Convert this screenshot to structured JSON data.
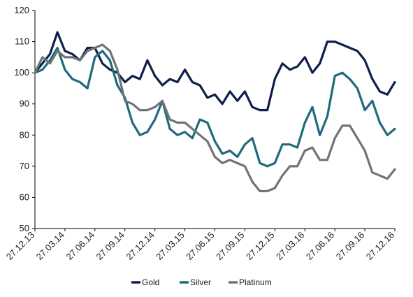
{
  "chart_data": {
    "type": "line",
    "title": "",
    "xlabel": "",
    "ylabel": "",
    "x_tick_labels": [
      "27.12.13",
      "27.03.14",
      "27.06.14",
      "27.09.14",
      "27.12.14",
      "27.03.15",
      "27.06.15",
      "27.09.15",
      "27.12.15",
      "27.03.16",
      "27.06.16",
      "27.09.16",
      "27.12.16"
    ],
    "ylim": [
      50,
      120
    ],
    "yticks": [
      50,
      60,
      70,
      80,
      90,
      100,
      110,
      120
    ],
    "grid": false,
    "legend_position": "bottom",
    "series": [
      {
        "name": "Gold",
        "color": "#0f1e4b",
        "values": [
          100,
          103,
          106,
          113,
          107,
          106,
          104,
          108,
          108,
          103,
          101,
          100,
          97,
          99,
          98,
          104,
          99,
          96,
          98,
          97,
          101,
          97,
          96,
          92,
          93,
          90,
          94,
          91,
          94,
          89,
          88,
          88,
          98,
          103,
          101,
          102,
          105,
          100,
          103,
          110,
          110,
          109,
          108,
          107,
          104,
          98,
          94,
          93,
          97
        ]
      },
      {
        "name": "Silver",
        "color": "#1f6b7c",
        "values": [
          100,
          101,
          104,
          108,
          101,
          98,
          97,
          95,
          105,
          107,
          104,
          96,
          92,
          84,
          80,
          81,
          85,
          91,
          82,
          80,
          81,
          79,
          85,
          84,
          78,
          74,
          75,
          73,
          77,
          79,
          71,
          70,
          71,
          77,
          77,
          76,
          84,
          89,
          80,
          86,
          99,
          100,
          98,
          95,
          88,
          91,
          84,
          80,
          82
        ]
      },
      {
        "name": "Platinum",
        "color": "#6f7476",
        "values": [
          100,
          105,
          103,
          107,
          105,
          105,
          104,
          107,
          108,
          109,
          107,
          101,
          91,
          90,
          88,
          88,
          89,
          91,
          85,
          84,
          84,
          82,
          80,
          78,
          73,
          71,
          72,
          71,
          70,
          65,
          62,
          62,
          63,
          67,
          70,
          70,
          75,
          76,
          72,
          72,
          79,
          83,
          83,
          79,
          75,
          68,
          67,
          66,
          69
        ]
      }
    ]
  }
}
